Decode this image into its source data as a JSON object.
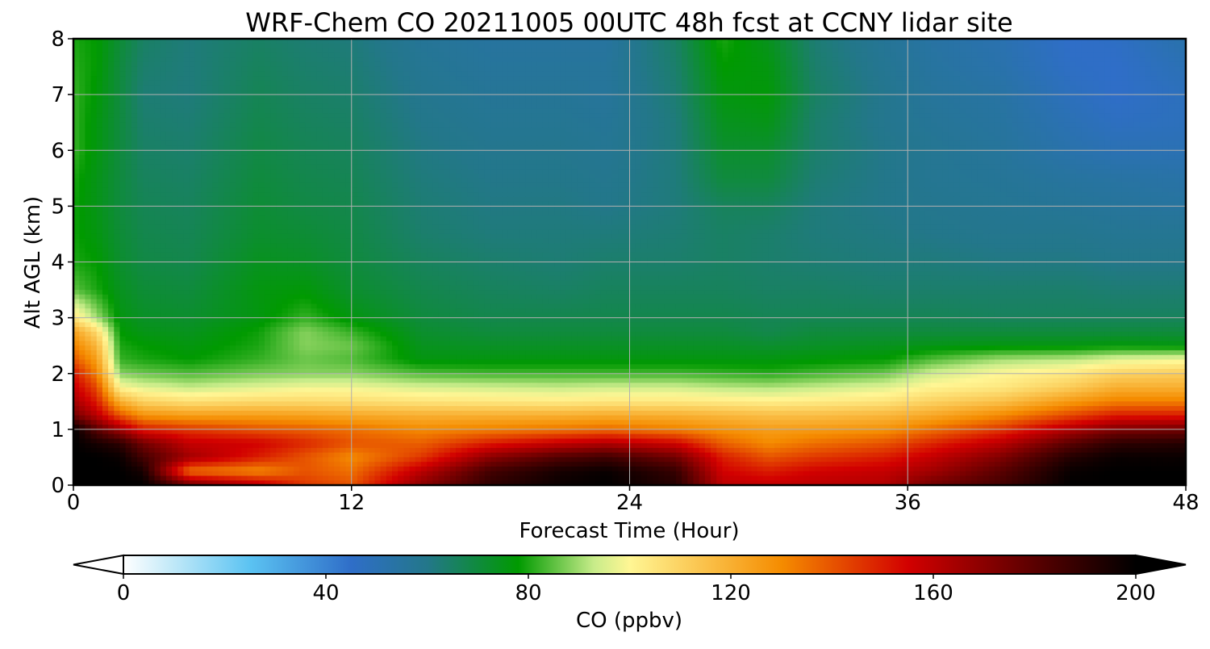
{
  "chart_data": {
    "type": "heatmap",
    "title": "WRF-Chem CO  20211005 00UTC 48h fcst at CCNY lidar site",
    "xlabel": "Forecast Time (Hour)",
    "ylabel": "Alt AGL (km)",
    "xlim": [
      0,
      48
    ],
    "ylim": [
      0,
      8
    ],
    "x_ticks": [
      0,
      12,
      24,
      36,
      48
    ],
    "x_tick_labels": [
      "0",
      "12",
      "24",
      "36",
      "48"
    ],
    "y_ticks": [
      0,
      1,
      2,
      3,
      4,
      5,
      6,
      7,
      8
    ],
    "y_tick_labels": [
      "0",
      "1",
      "2",
      "3",
      "4",
      "5",
      "6",
      "7",
      "8"
    ],
    "grid": true,
    "colorbar": {
      "label": "CO  (ppbv)",
      "min": 0,
      "max": 200,
      "ticks": [
        0,
        40,
        80,
        120,
        160,
        200
      ],
      "tick_labels": [
        "0",
        "40",
        "80",
        "120",
        "160",
        "200"
      ],
      "extend": "both",
      "colors": [
        "#ffffff",
        "#bfe8f8",
        "#5bc3f2",
        "#2f6ec8",
        "#23778a",
        "#009a00",
        "#c8ec8a",
        "#fff694",
        "#f58c00",
        "#d20000",
        "#5a0000",
        "#000000"
      ],
      "stops": [
        0,
        10,
        25,
        45,
        60,
        78,
        93,
        100,
        130,
        155,
        180,
        200
      ]
    },
    "x_hours": [
      0,
      1,
      2,
      3,
      5,
      8,
      10,
      12,
      15,
      18,
      21,
      23,
      26,
      28,
      30,
      32,
      35,
      37,
      40,
      43,
      45,
      48
    ],
    "alt_km": [
      0,
      0.25,
      0.5,
      0.75,
      1,
      1.25,
      1.5,
      1.75,
      2,
      2.25,
      2.5,
      2.75,
      3,
      3.5,
      4,
      4.5,
      5,
      5.5,
      6,
      6.5,
      7,
      7.5,
      8
    ],
    "co_ppbv": [
      [
        200,
        200,
        200,
        200,
        175,
        160,
        145,
        140,
        170,
        190,
        198,
        200,
        192,
        160,
        158,
        160,
        162,
        175,
        185,
        200,
        200,
        200
      ],
      [
        200,
        200,
        200,
        195,
        135,
        130,
        140,
        135,
        160,
        185,
        195,
        198,
        188,
        155,
        150,
        155,
        158,
        165,
        180,
        198,
        200,
        200
      ],
      [
        200,
        200,
        198,
        185,
        165,
        150,
        140,
        130,
        145,
        170,
        182,
        186,
        175,
        150,
        140,
        145,
        150,
        158,
        172,
        192,
        198,
        198
      ],
      [
        200,
        195,
        190,
        175,
        158,
        155,
        148,
        140,
        138,
        150,
        158,
        162,
        155,
        138,
        130,
        135,
        140,
        148,
        160,
        180,
        190,
        192
      ],
      [
        200,
        180,
        165,
        150,
        145,
        140,
        138,
        135,
        130,
        132,
        134,
        136,
        132,
        128,
        125,
        126,
        128,
        135,
        145,
        162,
        172,
        175
      ],
      [
        175,
        160,
        140,
        128,
        125,
        125,
        124,
        122,
        120,
        120,
        120,
        121,
        120,
        118,
        116,
        116,
        118,
        122,
        130,
        142,
        150,
        150
      ],
      [
        165,
        150,
        120,
        110,
        106,
        108,
        108,
        107,
        105,
        104,
        103,
        104,
        104,
        103,
        102,
        103,
        105,
        110,
        115,
        126,
        132,
        132
      ],
      [
        158,
        142,
        100,
        96,
        93,
        96,
        98,
        98,
        95,
        94,
        93,
        94,
        94,
        92,
        91,
        93,
        96,
        101,
        104,
        112,
        120,
        120
      ],
      [
        152,
        132,
        88,
        86,
        84,
        87,
        88,
        88,
        84,
        83,
        83,
        83,
        83,
        82,
        81,
        83,
        86,
        94,
        100,
        104,
        110,
        112
      ],
      [
        140,
        125,
        82,
        80,
        78,
        82,
        86,
        84,
        76,
        76,
        76,
        76,
        76,
        76,
        76,
        77,
        78,
        84,
        90,
        92,
        96,
        98
      ],
      [
        132,
        118,
        80,
        78,
        76,
        80,
        88,
        86,
        74,
        73,
        73,
        73,
        73,
        73,
        72,
        73,
        74,
        75,
        76,
        76,
        77,
        76
      ],
      [
        124,
        108,
        78,
        75,
        74,
        79,
        88,
        82,
        72,
        70,
        70,
        70,
        70,
        70,
        68,
        70,
        70,
        70,
        70,
        70,
        70,
        70
      ],
      [
        105,
        90,
        76,
        73,
        72,
        76,
        82,
        76,
        70,
        68,
        68,
        68,
        68,
        68,
        67,
        67,
        67,
        67,
        66,
        66,
        66,
        66
      ],
      [
        85,
        80,
        74,
        71,
        70,
        76,
        77,
        72,
        68,
        66,
        65,
        66,
        66,
        66,
        65,
        65,
        64,
        64,
        64,
        64,
        63,
        63
      ],
      [
        80,
        78,
        72,
        69,
        68,
        74,
        73,
        70,
        66,
        64,
        63,
        64,
        64,
        65,
        64,
        63,
        62,
        62,
        61,
        61,
        60,
        60
      ],
      [
        79,
        76,
        71,
        68,
        67,
        72,
        71,
        69,
        64,
        62,
        62,
        62,
        63,
        65,
        64,
        62,
        61,
        60,
        59,
        59,
        58,
        58
      ],
      [
        79,
        75,
        70,
        67,
        66,
        71,
        69,
        68,
        63,
        61,
        61,
        60,
        62,
        66,
        66,
        62,
        60,
        59,
        58,
        57,
        56,
        55
      ],
      [
        80,
        75,
        70,
        66,
        65,
        70,
        68,
        67,
        62,
        60,
        60,
        59,
        62,
        70,
        70,
        63,
        60,
        58,
        57,
        55,
        54,
        53
      ],
      [
        82,
        76,
        70,
        65,
        64,
        69,
        67,
        66,
        61,
        59,
        59,
        58,
        62,
        72,
        72,
        64,
        60,
        58,
        56,
        52,
        50,
        50
      ],
      [
        82,
        76,
        70,
        64,
        63,
        68,
        66,
        65,
        60,
        58,
        58,
        57,
        62,
        74,
        75,
        64,
        59,
        57,
        55,
        50,
        47,
        48
      ],
      [
        82,
        77,
        70,
        63,
        62,
        67,
        65,
        64,
        59,
        57,
        57,
        56,
        63,
        76,
        77,
        65,
        59,
        56,
        54,
        48,
        45,
        48
      ],
      [
        81,
        78,
        70,
        64,
        62,
        66,
        64,
        63,
        58,
        56,
        56,
        56,
        64,
        78,
        76,
        64,
        58,
        55,
        52,
        46,
        45,
        50
      ],
      [
        80,
        78,
        71,
        65,
        62,
        65,
        63,
        62,
        57,
        55,
        55,
        55,
        65,
        80,
        74,
        63,
        57,
        54,
        51,
        45,
        46,
        52
      ]
    ]
  }
}
